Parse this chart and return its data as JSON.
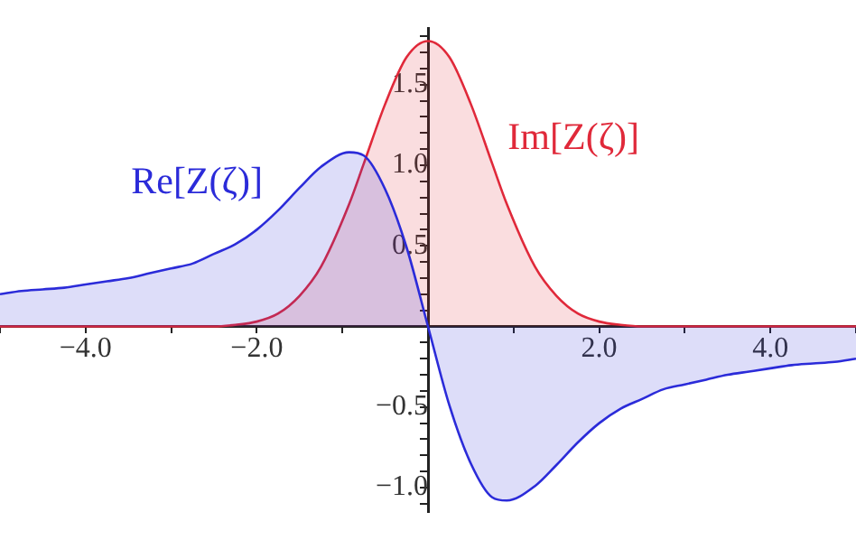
{
  "chart_data": {
    "type": "area",
    "x": [
      -5,
      -4.75,
      -4.5,
      -4.25,
      -4,
      -3.75,
      -3.5,
      -3.25,
      -3,
      -2.75,
      -2.5,
      -2.25,
      -2,
      -1.75,
      -1.5,
      -1.25,
      -0.92,
      -0.75,
      -0.5,
      -0.25,
      0,
      0.25,
      0.5,
      0.75,
      0.92,
      1.25,
      1.5,
      1.75,
      2,
      2.25,
      2.5,
      2.75,
      3,
      3.25,
      3.5,
      3.75,
      4,
      4.25,
      4.5,
      4.75,
      5
    ],
    "series": [
      {
        "name": "Re[Z(ζ)]",
        "color": "#2b2bd9",
        "values": [
          0.2,
          0.22,
          0.23,
          0.24,
          0.26,
          0.28,
          0.3,
          0.33,
          0.36,
          0.39,
          0.45,
          0.51,
          0.6,
          0.72,
          0.86,
          0.99,
          1.08,
          1.06,
          0.85,
          0.49,
          0,
          -0.49,
          -0.85,
          -1.06,
          -1.08,
          -0.99,
          -0.86,
          -0.72,
          -0.6,
          -0.51,
          -0.45,
          -0.39,
          -0.36,
          -0.33,
          -0.3,
          -0.28,
          -0.26,
          -0.24,
          -0.23,
          -0.22,
          -0.2
        ]
      },
      {
        "name": "Im[Z(ζ)]",
        "color": "#e0293a",
        "values": [
          0,
          0,
          0,
          0,
          0,
          0,
          0,
          0,
          0,
          0,
          0,
          0.01,
          0.03,
          0.08,
          0.19,
          0.37,
          0.76,
          1.01,
          1.38,
          1.67,
          1.77,
          1.67,
          1.38,
          1.01,
          0.76,
          0.37,
          0.19,
          0.08,
          0.03,
          0.01,
          0,
          0,
          0,
          0,
          0,
          0,
          0,
          0,
          0,
          0,
          0
        ]
      }
    ],
    "xlim": [
      -5,
      5
    ],
    "xticks": [
      {
        "value": -5,
        "label": null
      },
      {
        "value": -4,
        "label": "−4.0"
      },
      {
        "value": -3,
        "label": null
      },
      {
        "value": -2,
        "label": "−2.0"
      },
      {
        "value": -1,
        "label": null
      },
      {
        "value": 1,
        "label": null
      },
      {
        "value": 2,
        "label": "2.0"
      },
      {
        "value": 3,
        "label": null
      },
      {
        "value": 4,
        "label": "4.0"
      },
      {
        "value": 5,
        "label": null
      }
    ],
    "ylim": [
      -1.15,
      1.85
    ],
    "yticks": [
      {
        "value": -1.1,
        "label": null
      },
      {
        "value": -1,
        "label": "−1.0"
      },
      {
        "value": -0.9,
        "label": null
      },
      {
        "value": -0.8,
        "label": null
      },
      {
        "value": -0.7,
        "label": null
      },
      {
        "value": -0.6,
        "label": null
      },
      {
        "value": -0.5,
        "label": "−0.5"
      },
      {
        "value": -0.4,
        "label": null
      },
      {
        "value": -0.3,
        "label": null
      },
      {
        "value": -0.2,
        "label": null
      },
      {
        "value": -0.1,
        "label": null
      },
      {
        "value": 0.1,
        "label": null
      },
      {
        "value": 0.2,
        "label": null
      },
      {
        "value": 0.3,
        "label": null
      },
      {
        "value": 0.4,
        "label": null
      },
      {
        "value": 0.5,
        "label": "0.5"
      },
      {
        "value": 0.6,
        "label": null
      },
      {
        "value": 0.7,
        "label": null
      },
      {
        "value": 0.8,
        "label": null
      },
      {
        "value": 0.9,
        "label": null
      },
      {
        "value": 1,
        "label": "1.0"
      },
      {
        "value": 1.1,
        "label": null
      },
      {
        "value": 1.2,
        "label": null
      },
      {
        "value": 1.3,
        "label": null
      },
      {
        "value": 1.4,
        "label": null
      },
      {
        "value": 1.5,
        "label": "1.5"
      },
      {
        "value": 1.6,
        "label": null
      },
      {
        "value": 1.7,
        "label": null
      },
      {
        "value": 1.8,
        "label": null
      }
    ],
    "grid": false,
    "legend": false,
    "marker": "none"
  }
}
